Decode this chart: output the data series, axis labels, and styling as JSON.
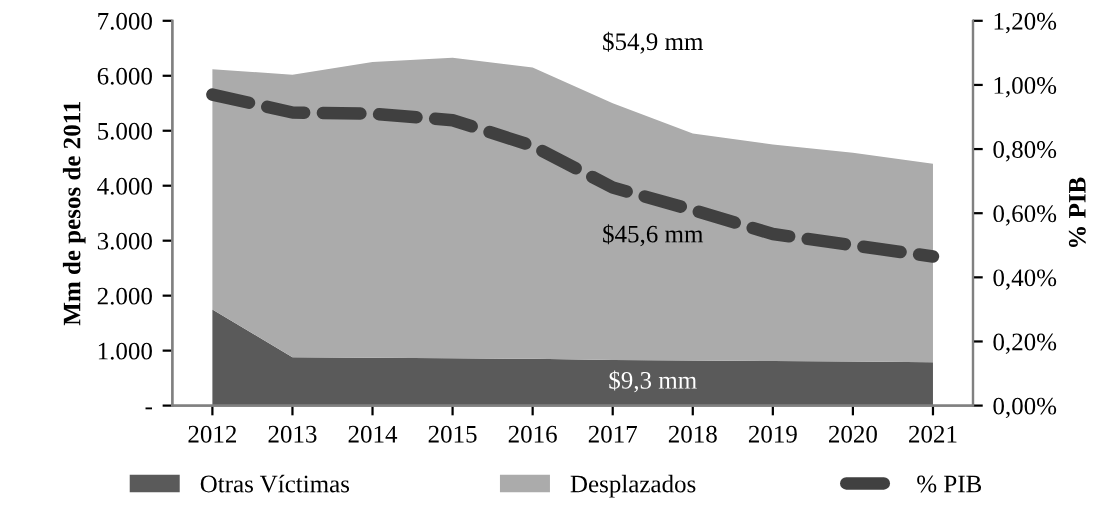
{
  "chart_data": {
    "type": "area",
    "stacked": true,
    "ylabel": "Mm de pesos de 2011",
    "y2label": "% PIB",
    "categories": [
      "2012",
      "2013",
      "2014",
      "2015",
      "2016",
      "2017",
      "2018",
      "2019",
      "2020",
      "2021"
    ],
    "series": [
      {
        "name": "Otras Víctimas",
        "color": "#5a5a5a",
        "values": [
          1750,
          880,
          870,
          860,
          850,
          830,
          820,
          810,
          800,
          790
        ]
      },
      {
        "name": "Desplazados",
        "color": "#ababab",
        "values": [
          4370,
          5140,
          5380,
          5470,
          5300,
          4670,
          4130,
          3940,
          3800,
          3610
        ]
      },
      {
        "name": "% PIB",
        "type": "line",
        "axis": "y2",
        "color": "#404040",
        "line_style": "dashed",
        "values": [
          0.97,
          0.914,
          0.91,
          0.89,
          0.81,
          0.68,
          0.61,
          0.535,
          0.5,
          0.465
        ]
      }
    ],
    "ylim": [
      0,
      7000
    ],
    "yticks": [
      {
        "value": 0,
        "label": "-"
      },
      {
        "value": 1000,
        "label": "1.000"
      },
      {
        "value": 2000,
        "label": "2.000"
      },
      {
        "value": 3000,
        "label": "3.000"
      },
      {
        "value": 4000,
        "label": "4.000"
      },
      {
        "value": 5000,
        "label": "5.000"
      },
      {
        "value": 6000,
        "label": "6.000"
      },
      {
        "value": 7000,
        "label": "7.000"
      }
    ],
    "y2lim": [
      0,
      1.2
    ],
    "y2ticks": [
      {
        "value": 0,
        "label": "0,00%"
      },
      {
        "value": 0.2,
        "label": "0,20%"
      },
      {
        "value": 0.4,
        "label": "0,40%"
      },
      {
        "value": 0.6,
        "label": "0,60%"
      },
      {
        "value": 0.8,
        "label": "0,80%"
      },
      {
        "value": 1.0,
        "label": "1,00%"
      },
      {
        "value": 1.2,
        "label": "1,20%"
      }
    ],
    "annotations": [
      "$54,9 mm",
      "$45,6 mm",
      "$9,3 mm"
    ],
    "grid": false,
    "legend": "bottom"
  }
}
